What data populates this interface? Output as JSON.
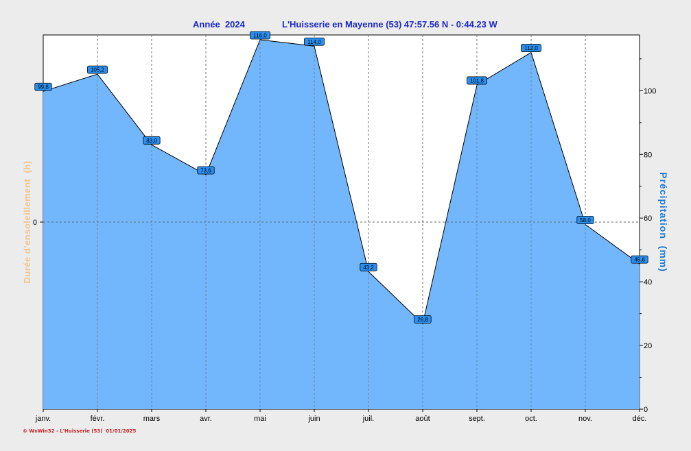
{
  "header": {
    "year_label": "Année  2024",
    "station": "L'Huisserie en Mayenne (53) 47:57.56 N - 0:44.23 W"
  },
  "footer": {
    "credit": "© WxWin32 - L'Huisserie (53)  01/01/2025"
  },
  "colors": {
    "area_fill": "#72b6fb",
    "line": "#000000",
    "title": "#1a28c8",
    "right_axis_label": "#1a78d8",
    "left_axis_label": "#f2c48a",
    "label_box": "#2a8ff0",
    "footer": "#c81e1e"
  },
  "chart_data": {
    "type": "area",
    "categories": [
      "janv.",
      "févr.",
      "mars",
      "avr.",
      "mai",
      "juin",
      "juil.",
      "août",
      "sept.",
      "oct.",
      "nov.",
      "déc."
    ],
    "series": [
      {
        "axis": "right",
        "values": [
          99.8,
          105.2,
          83.0,
          73.6,
          116.0,
          114.0,
          43.2,
          26.8,
          101.8,
          112.0,
          58.0,
          45.6
        ],
        "value_labels": [
          "99,8",
          "105,2",
          "83,0",
          "73,6",
          "116,0",
          "114,0",
          "43,2",
          "26,8",
          "101,8",
          "112,0",
          "58,0",
          "45,6"
        ]
      }
    ],
    "left_axis": {
      "label": "Durée d'ensoleillement  (h)",
      "ticks": [
        "0"
      ]
    },
    "right_axis": {
      "label": "Précipitation  (mm)",
      "ylim": [
        0,
        117.5
      ],
      "ticks": [
        "0",
        "20",
        "40",
        "60",
        "80",
        "100"
      ]
    },
    "grid": true,
    "grid_style": "dashed vertical at months, dashed horizontal at left 0"
  }
}
